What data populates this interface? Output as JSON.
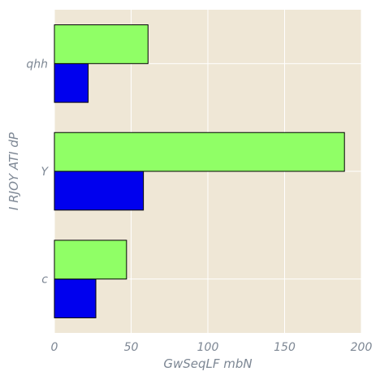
{
  "chart_data": {
    "type": "bar",
    "orientation": "horizontal",
    "categories": [
      "c",
      "Y",
      "qhh"
    ],
    "series": [
      {
        "values": [
          27,
          58,
          22
        ],
        "color": "#0000ee"
      },
      {
        "values": [
          47,
          189,
          61
        ],
        "color": "#90ff66"
      }
    ],
    "xlabel": "GwSeqLF mbN",
    "ylabel": "I RJOY ATI dP",
    "xlim": [
      0,
      200
    ],
    "xticks": [
      "0",
      "50",
      "100",
      "150",
      "200"
    ],
    "grid": true,
    "background": "#efe7d6",
    "grid_color": "#ffffff",
    "bar_edge_color": "#000000"
  }
}
